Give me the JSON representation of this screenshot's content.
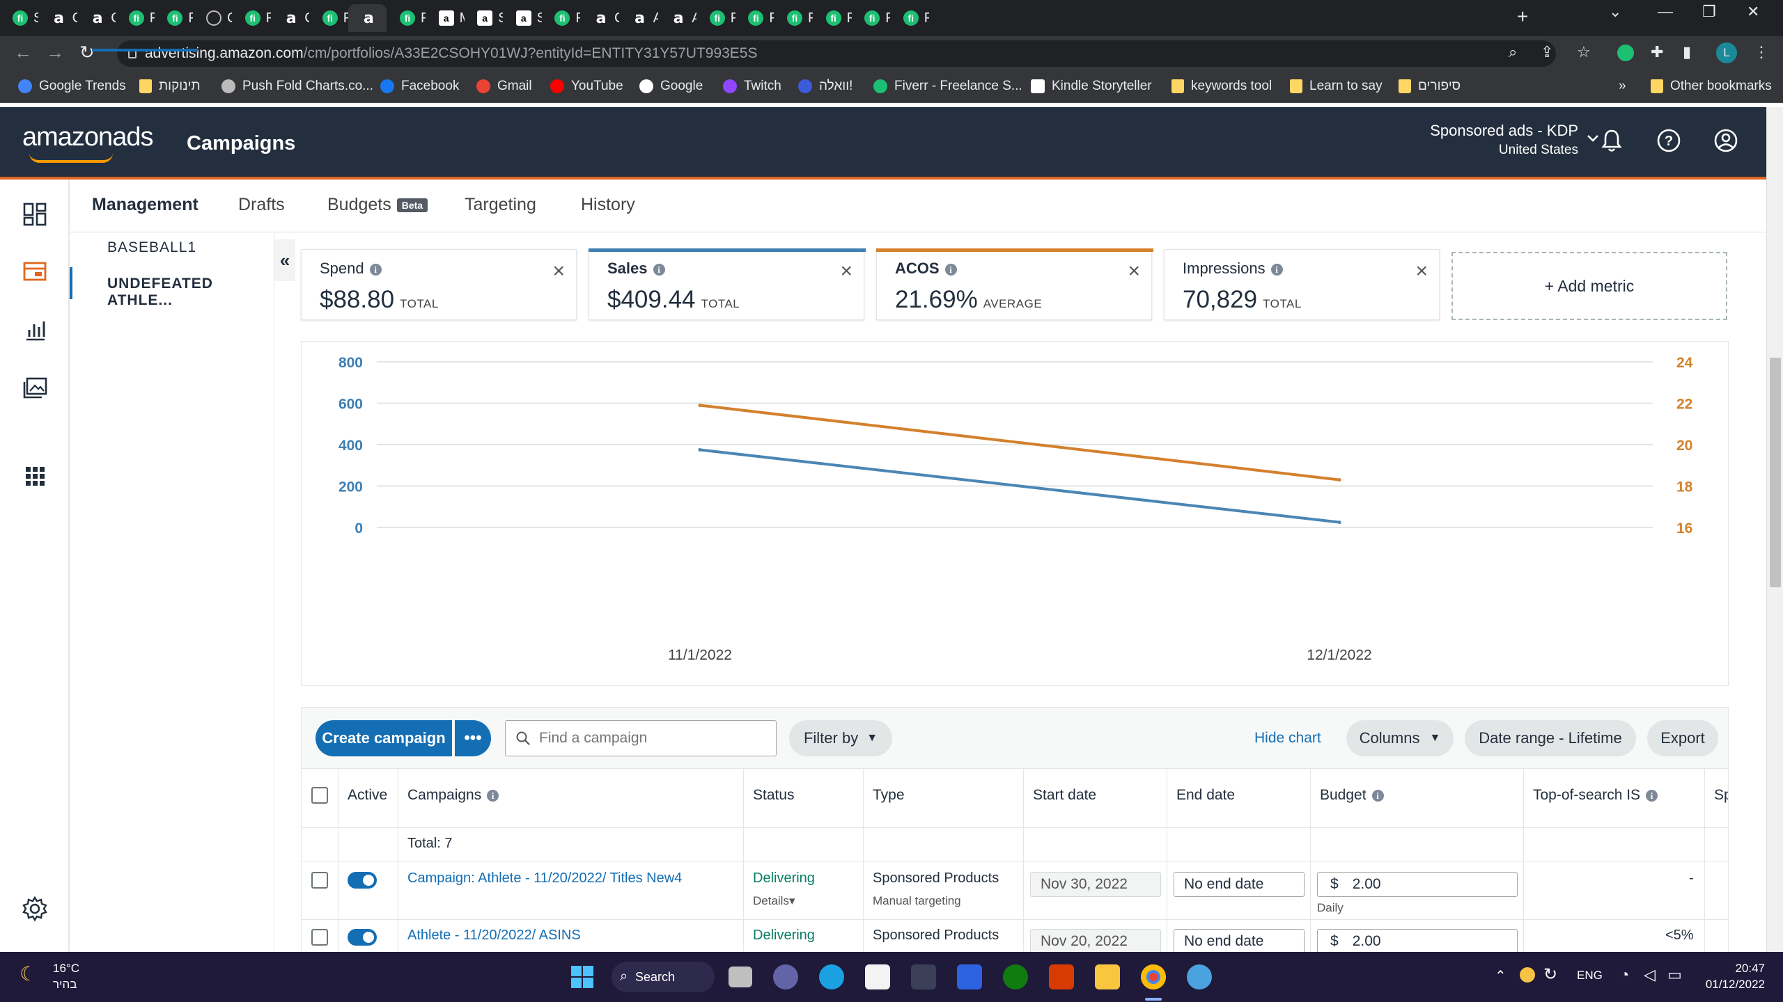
{
  "browser": {
    "tabs": [
      {
        "title": "Sell",
        "icon": "fiverr-icon"
      },
      {
        "title": "Can",
        "icon": "amazon-icon"
      },
      {
        "title": "Can",
        "icon": "amazon-icon"
      },
      {
        "title": "Five",
        "icon": "fiverr-icon"
      },
      {
        "title": "Five",
        "icon": "fiverr-icon"
      },
      {
        "title": "Can",
        "icon": "globe-icon"
      },
      {
        "title": "Five",
        "icon": "fiverr-icon"
      },
      {
        "title": "Can",
        "icon": "amazon-icon"
      },
      {
        "title": "Five",
        "icon": "fiverr-icon"
      },
      {
        "title": "",
        "icon": "amazon-icon",
        "active": true
      },
      {
        "title": "Five",
        "icon": "fiverr-icon"
      },
      {
        "title": "Min",
        "icon": "amazon-box-icon"
      },
      {
        "title": "Stre",
        "icon": "amazon-box-icon"
      },
      {
        "title": "Stre",
        "icon": "amazon-box-icon"
      },
      {
        "title": "Five",
        "icon": "fiverr-icon"
      },
      {
        "title": "Can",
        "icon": "amazon-icon"
      },
      {
        "title": "Ad",
        "icon": "amazon-icon"
      },
      {
        "title": "Ad",
        "icon": "amazon-icon"
      },
      {
        "title": "Five",
        "icon": "fiverr-icon"
      },
      {
        "title": "Five",
        "icon": "fiverr-icon"
      },
      {
        "title": "Five",
        "icon": "fiverr-icon"
      },
      {
        "title": "Five",
        "icon": "fiverr-icon"
      },
      {
        "title": "Five",
        "icon": "fiverr-icon"
      },
      {
        "title": "Five",
        "icon": "fiverr-icon"
      }
    ],
    "url_host": "advertising.amazon.com",
    "url_path": "/cm/portfolios/A33E2CSOHY01WJ?entityId=ENTITY31Y57UT993E5S",
    "profile_initial": "L",
    "bookmarks": [
      {
        "label": "Google Trends",
        "icon": "trends-icon"
      },
      {
        "label": "תינוקות",
        "icon": "folder-icon"
      },
      {
        "label": "Push Fold Charts.co...",
        "icon": "globe-icon"
      },
      {
        "label": "Facebook",
        "icon": "facebook-icon"
      },
      {
        "label": "Gmail",
        "icon": "gmail-icon"
      },
      {
        "label": "YouTube",
        "icon": "youtube-icon"
      },
      {
        "label": "Google",
        "icon": "google-icon"
      },
      {
        "label": "Twitch",
        "icon": "twitch-icon"
      },
      {
        "label": "וואלה!",
        "icon": "walla-icon"
      },
      {
        "label": "Fiverr - Freelance S...",
        "icon": "fiverr-icon"
      },
      {
        "label": "Kindle Storyteller",
        "icon": "amazon-box-icon"
      },
      {
        "label": "keywords tool",
        "icon": "folder-icon"
      },
      {
        "label": "Learn to say",
        "icon": "folder-icon"
      },
      {
        "label": "סיפורים",
        "icon": "folder-icon"
      }
    ],
    "bookmarks_overflow": "»",
    "other_bookmarks": "Other bookmarks"
  },
  "header": {
    "logo": "amazonads",
    "title": "Campaigns",
    "account_name": "Sponsored ads - KDP",
    "account_country": "United States"
  },
  "tabs": [
    {
      "label": "Management",
      "active": true
    },
    {
      "label": "Drafts"
    },
    {
      "label": "Budgets",
      "badge": "Beta"
    },
    {
      "label": "Targeting"
    },
    {
      "label": "History"
    }
  ],
  "portfolios": [
    {
      "label": "BASEBALL1"
    },
    {
      "label": "UNDEFEATED ATHLE...",
      "active": true
    }
  ],
  "collapse_glyph": "«",
  "metrics": [
    {
      "name": "Spend",
      "value": "$88.80",
      "agg": "TOTAL",
      "color": ""
    },
    {
      "name": "Sales",
      "value": "$409.44",
      "agg": "TOTAL",
      "color": "#3f7fb3"
    },
    {
      "name": "ACOS",
      "value": "21.69%",
      "agg": "AVERAGE",
      "color": "#d3812a"
    },
    {
      "name": "Impressions",
      "value": "70,829",
      "agg": "TOTAL",
      "color": ""
    }
  ],
  "add_metric_label": "+ Add metric",
  "chart_data": {
    "type": "line",
    "x": [
      "11/1/2022",
      "12/1/2022"
    ],
    "series": [
      {
        "name": "Sales",
        "axis": "left",
        "color": "#4a86b5",
        "values": [
          375,
          25
        ]
      },
      {
        "name": "ACOS",
        "axis": "right",
        "color": "#d4802c",
        "values": [
          21.9,
          18.3
        ]
      }
    ],
    "y_left": {
      "ticks": [
        "800",
        "600",
        "400",
        "200",
        "0"
      ],
      "range": [
        0,
        800
      ],
      "color": "#3f7fb3"
    },
    "y_right": {
      "ticks": [
        "24",
        "22",
        "20",
        "18",
        "16"
      ],
      "range": [
        16,
        24
      ],
      "color": "#d3812a"
    },
    "grid": true
  },
  "actions": {
    "create": "Create campaign",
    "more": "•••",
    "search_placeholder": "Find a campaign",
    "filter": "Filter by",
    "hide_chart": "Hide chart",
    "columns": "Columns",
    "date_range": "Date range - Lifetime",
    "export": "Export"
  },
  "table": {
    "headers": {
      "active": "Active",
      "campaigns": "Campaigns",
      "status": "Status",
      "type": "Type",
      "start": "Start date",
      "end": "End date",
      "budget": "Budget",
      "top_is": "Top-of-search IS",
      "sp": "Sp"
    },
    "total": "Total: 7",
    "rows": [
      {
        "name": "Campaign: Athlete - 11/20/2022/ Titles New4",
        "status": "Delivering",
        "details": "Details▾",
        "type": "Sponsored Products",
        "targeting": "Manual targeting",
        "start": "Nov 30, 2022",
        "end": "No end date",
        "currency": "$",
        "budget": "2.00",
        "budget_period": "Daily",
        "top_is": "-"
      },
      {
        "name": "Athlete - 11/20/2022/ ASINS",
        "status": "Delivering",
        "type": "Sponsored Products",
        "start": "Nov 20, 2022",
        "end": "No end date",
        "currency": "$",
        "budget": "2.00",
        "top_is": "<5%"
      }
    ]
  },
  "taskbar": {
    "temp": "16°C",
    "weather_text": "בהיר",
    "search": "Search",
    "lang": "ENG",
    "time": "20:47",
    "date": "01/12/2022"
  }
}
